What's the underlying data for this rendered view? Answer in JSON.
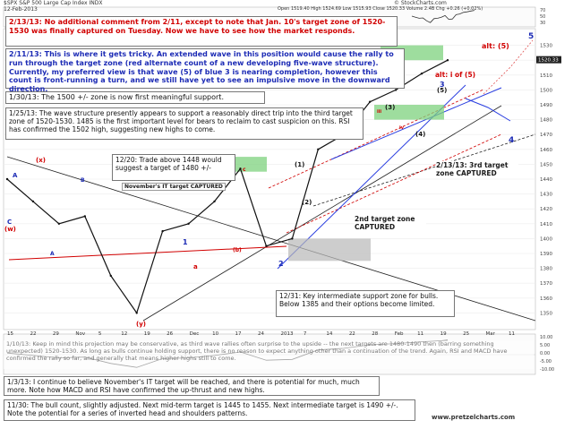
{
  "header": {
    "ticker": "$SPX",
    "name": "S&P 500 Large Cap Index INDX",
    "date": "12-Feb-2013",
    "ohlc": "Open 1519.40  High 1524.69  Low 1515.93  Close 1520.33  Volume 2.4B  Chg +0.26 (+0.02%)",
    "watermark": "© StockCharts.com"
  },
  "colors": {
    "price": "#111111",
    "red_ann": "#d10000",
    "blue_ann": "#1c2bb5",
    "green_ann": "#1a7a1a",
    "box_green": "#7ed27e"
  },
  "annotations": {
    "a_213": "2/13/13:  No additional comment from 2/11, except to note that Jan. 10's target zone of 1520-1530 was finally captured on Tuesday.  Now we have to see how the market responds.",
    "a_211": "2/11/13:  This is where it gets tricky.  An extended wave in this position would cause the rally to run through the target zone (red alternate count of a new developing five-wave structure).  Currently, my preferred view is that wave (5) of blue 3 is nearing completion, however this count is front-running a turn, and we still have yet to see an impulsive move in the downward direction.",
    "a_130": "1/30/13:  The 1500 +/- zone is now first meaningful support.",
    "a_125": "1/25/13:  The wave structure presently appears to support a reasonably direct trip into the third target zone of 1520-1530.  1485 is the first important level for bears to reclaim to cast suspicion on this.  RSI has confirmed the 1502 high, suggesting new highs to come.",
    "a_1220": "12/20:  Trade above 1448 would suggest a target of 1480 +/-",
    "a_1231": "12/31:  Key intermediate support zone for bulls.  Below 1385 and their options become limited.",
    "a_110": "1/10/13:  Keep in mind this projection may be conservative, as third wave rallies often surprise to the upside -- the next targets are 1480-1490 then (barring something unexpected) 1520-1530.  As long as bulls continue holding support, there is no reason to expect anything other than a continuation of the trend.  Again, RSI and MACD have confirmed the rally so far, and generally that means higher highs still to come.",
    "a_13": "1/3/13:  I continue to believe November's IT target will be reached, and there is potential for much, much more.  Note how MACD and RSI have confirmed the up-thrust and new highs.",
    "a_1130": "11/30:  The bull count, slightly adjusted.  Next mid-term target is 1445 to 1455.  Next intermediate target is 1490 +/-.  Note the potential for a series of inverted head and shoulders patterns.",
    "captured_213": "2/13/13: 3rd target zone CAPTURED",
    "second_zone": "2nd target zone CAPTURED",
    "nov_captured": "November's IT target CAPTURED",
    "alt5": "alt: (5)",
    "alt_i5": "alt: i of (5)",
    "website": "www.pretzelcharts.com"
  },
  "wave_labels": {
    "x": "(x)",
    "y": "(y)",
    "w": "(w)",
    "A1": "A",
    "A2": "A",
    "B": "B",
    "C": "C",
    "one": "1",
    "two": "2",
    "three": "3",
    "four": "4",
    "five": "5",
    "p1": "(1)",
    "p2": "(2)",
    "p3": "(3)",
    "p4": "(4)",
    "p5": "(5)",
    "a": "a",
    "b": "(b)",
    "c": "c",
    "iii": "iii",
    "iv": "iv"
  },
  "chart_data": {
    "type": "line",
    "title": "S&P 500 Large Cap Index",
    "x": [
      "Oct 15",
      "Oct 22",
      "Oct 29",
      "Nov 5",
      "Nov 12",
      "Nov 16",
      "Nov 26",
      "Dec 3",
      "Dec 10",
      "Dec 17",
      "Dec 24",
      "Dec 31",
      "Jan 7",
      "Jan 14",
      "Jan 22",
      "Jan 28",
      "Feb 4",
      "Feb 12"
    ],
    "y": [
      1440,
      1425,
      1410,
      1415,
      1375,
      1350,
      1405,
      1410,
      1425,
      1447,
      1395,
      1400,
      1460,
      1470,
      1492,
      1500,
      1511,
      1520
    ],
    "ylabel": "",
    "ylim": [
      1340,
      1540
    ],
    "x_ticks": [
      "15",
      "22",
      "29",
      "Nov",
      "5",
      "12",
      "19",
      "26",
      "Dec",
      "10",
      "17",
      "24",
      "2013",
      "7",
      "14",
      "22",
      "28",
      "Feb",
      "11",
      "19",
      "25",
      "Mar",
      "11"
    ],
    "y_ticks": [
      1350,
      1360,
      1370,
      1380,
      1390,
      1400,
      1410,
      1420,
      1430,
      1440,
      1450,
      1460,
      1470,
      1480,
      1490,
      1500,
      1510,
      1520,
      1530
    ],
    "last_price_label": "1520.33",
    "rsi_ticks": [
      "70",
      "50",
      "30"
    ],
    "macd_ticks": [
      "10.00",
      "5.00",
      "0.00",
      "-5.00",
      "-10.00"
    ],
    "grid": true
  }
}
